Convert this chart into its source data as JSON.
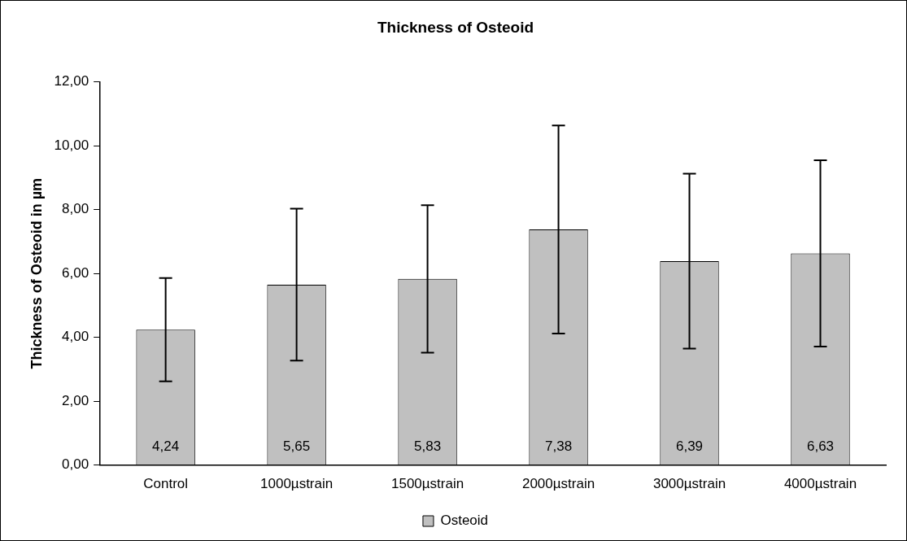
{
  "chart_data": {
    "type": "bar",
    "title": "Thickness of Osteoid",
    "ylabel": "Thickness of Osteoid in µm",
    "categories": [
      "Control",
      "1000µstrain",
      "1500µstrain",
      "2000µstrain",
      "3000µstrain",
      "4000µstrain"
    ],
    "series": [
      {
        "name": "Osteoid",
        "color": "#c0c0c0",
        "values": [
          4.24,
          5.65,
          5.83,
          7.38,
          6.39,
          6.63
        ],
        "errors": [
          1.62,
          2.38,
          2.31,
          3.26,
          2.74,
          2.92
        ]
      }
    ],
    "value_labels": [
      "4,24",
      "5,65",
      "5,83",
      "7,38",
      "6,39",
      "6,63"
    ],
    "ylim": [
      0,
      12
    ],
    "yticks": [
      {
        "value": 0,
        "label": "0,00"
      },
      {
        "value": 2,
        "label": "2,00"
      },
      {
        "value": 4,
        "label": "4,00"
      },
      {
        "value": 6,
        "label": "6,00"
      },
      {
        "value": 8,
        "label": "8,00"
      },
      {
        "value": 10,
        "label": "10,00"
      },
      {
        "value": 12,
        "label": "12,00"
      }
    ],
    "grid": false,
    "legend": "bottom"
  }
}
